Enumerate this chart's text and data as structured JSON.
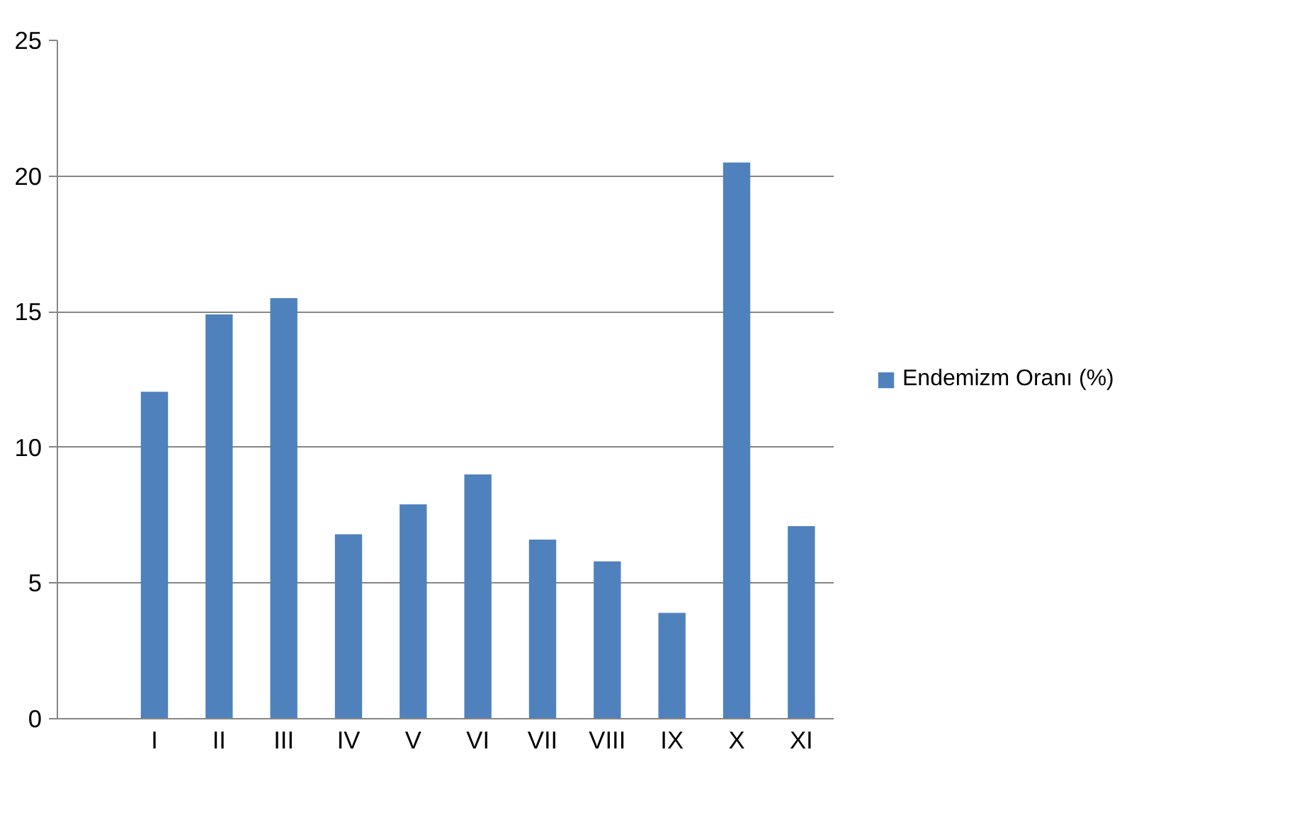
{
  "chart_data": {
    "type": "bar",
    "categories": [
      null,
      "I",
      "II",
      "III",
      "IV",
      "V",
      "VI",
      "VII",
      "VIII",
      "IX",
      "X",
      "XI"
    ],
    "series": [
      {
        "name": "Endemizm Oranı (%)",
        "color": "#4f81bd",
        "values": [
          null,
          12.05,
          14.9,
          15.5,
          6.8,
          7.9,
          9.0,
          6.6,
          5.8,
          3.9,
          20.5,
          7.1
        ]
      }
    ],
    "ylim": [
      0,
      25
    ],
    "yticks": [
      0,
      5,
      10,
      15,
      20,
      25
    ],
    "grid": "y",
    "legend": "right"
  }
}
